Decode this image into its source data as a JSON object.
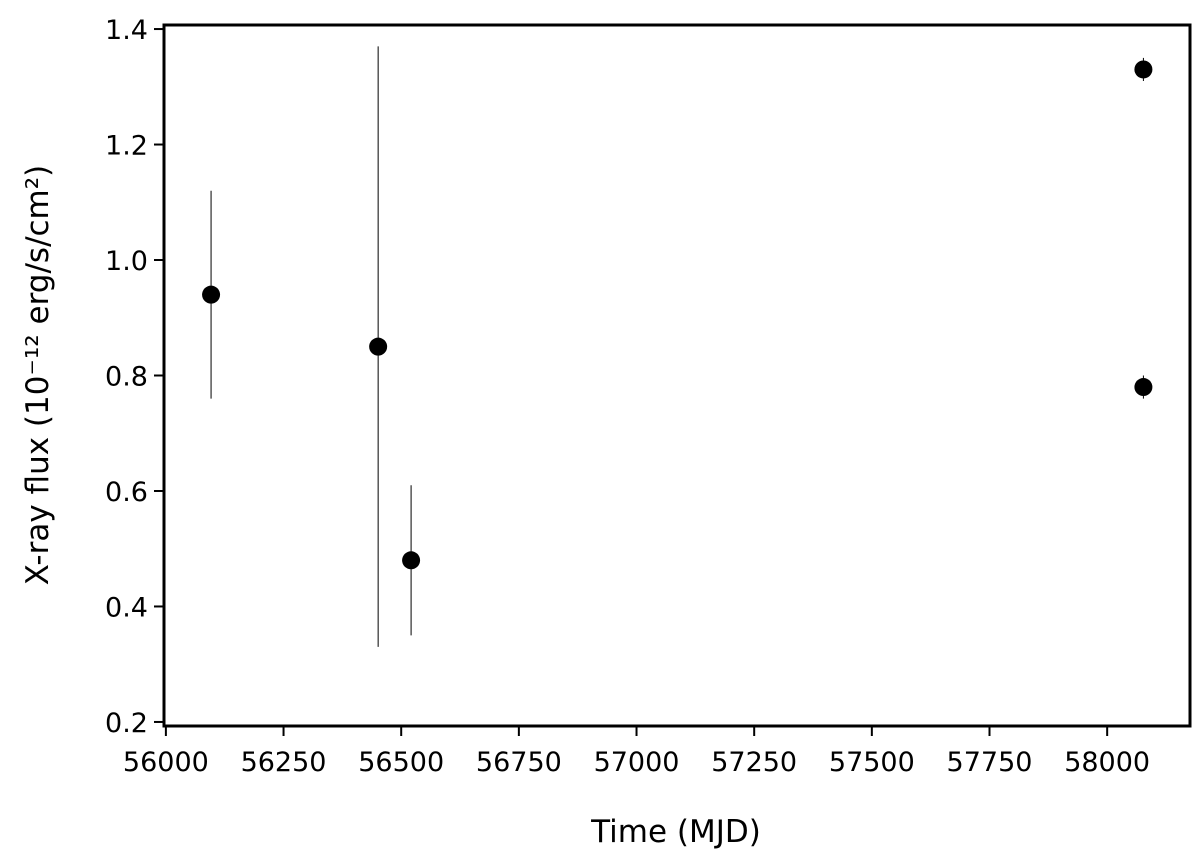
{
  "chart_data": {
    "type": "scatter",
    "xlabel": "Time (MJD)",
    "ylabel": "X-ray flux (10⁻¹² erg/s/cm²)",
    "x": [
      56096,
      56451,
      56521,
      58077,
      58077
    ],
    "values": [
      0.94,
      0.85,
      0.48,
      1.33,
      0.78
    ],
    "yerr": [
      0.18,
      0.52,
      0.13,
      0.02,
      0.02
    ],
    "color": "#000000",
    "xlim": [
      55996,
      58176
    ],
    "ylim": [
      0.193,
      1.407
    ],
    "xticks": [
      56000,
      56250,
      56500,
      56750,
      57000,
      57250,
      57500,
      57750,
      58000
    ],
    "yticks": [
      0.2,
      0.4,
      0.6,
      0.8,
      {
        "value": 1,
        "label": "1.0"
      },
      1.2,
      1.4
    ]
  }
}
